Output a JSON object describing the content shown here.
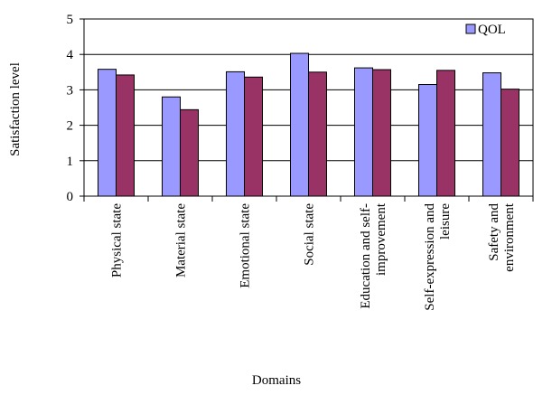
{
  "chart_data": {
    "type": "bar",
    "xlabel": "Domains",
    "ylabel": "Satisfaction level",
    "ylim": [
      0,
      5
    ],
    "yticks": [
      "0",
      "1",
      "2",
      "3",
      "4",
      "5"
    ],
    "grid": true,
    "legend_position": "top-right",
    "categories": [
      [
        "Physical state"
      ],
      [
        "Material state"
      ],
      [
        "Emotional state"
      ],
      [
        "Social state"
      ],
      [
        "Education and self-",
        "improvement"
      ],
      [
        "Self-expression and",
        "leisure"
      ],
      [
        "Safety and",
        "environment"
      ]
    ],
    "series": [
      {
        "name": "QOL",
        "color": "#9999ff",
        "values": [
          3.58,
          2.8,
          3.51,
          4.03,
          3.62,
          3.15,
          3.48
        ]
      },
      {
        "name": "",
        "color": "#993366",
        "values": [
          3.42,
          2.44,
          3.36,
          3.5,
          3.57,
          3.55,
          3.02
        ]
      }
    ]
  }
}
